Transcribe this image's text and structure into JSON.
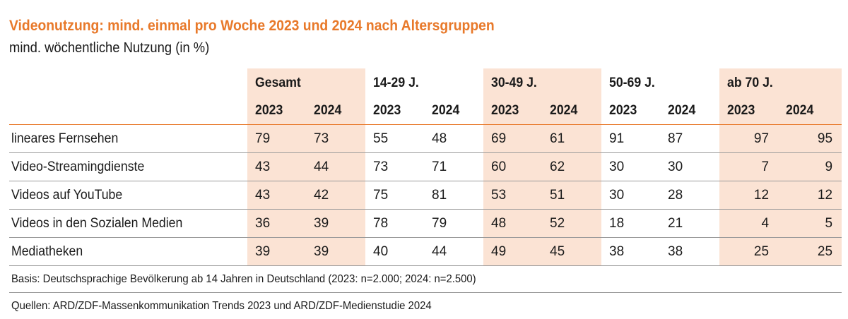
{
  "title": "Videonutzung: mind. einmal pro Woche 2023 und 2024 nach Altersgruppen",
  "subtitle": "mind. wöchentliche Nutzung (in %)",
  "colors": {
    "accent": "#e8792a",
    "shade": "#fbe3d4"
  },
  "chart_data": {
    "type": "table",
    "groups": [
      "Gesamt",
      "14-29 J.",
      "30-49 J.",
      "50-69 J.",
      "ab 70 J."
    ],
    "years": [
      "2023",
      "2024"
    ],
    "rows": [
      {
        "label": "lineares Fernsehen",
        "values": [
          79,
          73,
          55,
          48,
          69,
          61,
          91,
          87,
          97,
          95
        ]
      },
      {
        "label": "Video-Streamingdienste",
        "values": [
          43,
          44,
          73,
          71,
          60,
          62,
          30,
          30,
          7,
          9
        ]
      },
      {
        "label": "Videos auf YouTube",
        "values": [
          43,
          42,
          75,
          81,
          53,
          51,
          30,
          28,
          12,
          12
        ]
      },
      {
        "label": "Videos in den Sozialen Medien",
        "values": [
          36,
          39,
          78,
          79,
          48,
          52,
          18,
          21,
          4,
          5
        ]
      },
      {
        "label": "Mediatheken",
        "values": [
          39,
          39,
          40,
          44,
          49,
          45,
          38,
          38,
          25,
          25
        ]
      }
    ]
  },
  "footnotes": {
    "basis": "Basis: Deutschsprachige Bevölkerung ab 14 Jahren in Deutschland (2023: n=2.000; 2024: n=2.500)",
    "quellen": "Quellen: ARD/ZDF-Massenkommunikation Trends 2023 und ARD/ZDF-Medienstudie 2024"
  }
}
